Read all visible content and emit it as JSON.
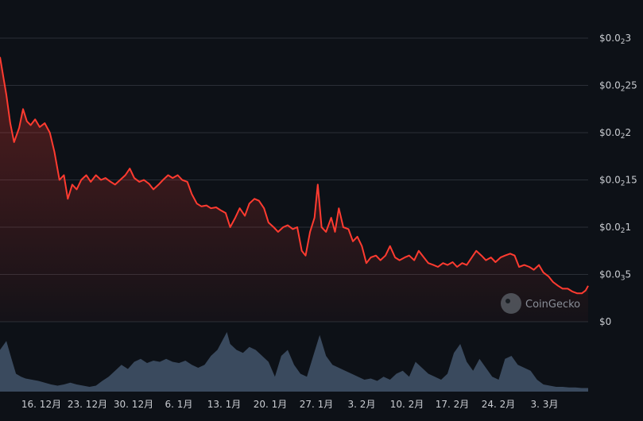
{
  "chart_data": {
    "type": "line",
    "x_labels": [
      "16. 12月",
      "23. 12月",
      "30. 12月",
      "6. 1月",
      "13. 1月",
      "20. 1月",
      "27. 1月",
      "3. 2月",
      "10. 2月",
      "17. 2月",
      "24. 2月",
      "3. 3月"
    ],
    "y_ticks": [
      {
        "main": "$0.0",
        "sub": "2",
        "tail": "3",
        "value": 0.3
      },
      {
        "main": "$0.0",
        "sub": "2",
        "tail": "25",
        "value": 0.25
      },
      {
        "main": "$0.0",
        "sub": "2",
        "tail": "2",
        "value": 0.2
      },
      {
        "main": "$0.0",
        "sub": "2",
        "tail": "15",
        "value": 0.15
      },
      {
        "main": "$0.0",
        "sub": "2",
        "tail": "1",
        "value": 0.1
      },
      {
        "main": "$0.0",
        "sub": "3",
        "tail": "5",
        "value": 0.05
      },
      {
        "main": "$0",
        "sub": "",
        "tail": "",
        "value": 0
      }
    ],
    "ylim": [
      0,
      0.3
    ],
    "price_series": {
      "color": "#ff3b30",
      "points": [
        [
          0,
          0.28
        ],
        [
          1,
          0.24
        ],
        [
          1.6,
          0.21
        ],
        [
          2.2,
          0.19
        ],
        [
          3,
          0.205
        ],
        [
          3.6,
          0.225
        ],
        [
          4.2,
          0.212
        ],
        [
          4.8,
          0.208
        ],
        [
          5.5,
          0.214
        ],
        [
          6.2,
          0.206
        ],
        [
          7,
          0.21
        ],
        [
          7.8,
          0.2
        ],
        [
          8.5,
          0.18
        ],
        [
          9.3,
          0.15
        ],
        [
          10,
          0.155
        ],
        [
          10.6,
          0.13
        ],
        [
          11.3,
          0.145
        ],
        [
          12,
          0.14
        ],
        [
          12.7,
          0.15
        ],
        [
          13.5,
          0.155
        ],
        [
          14.2,
          0.148
        ],
        [
          15,
          0.155
        ],
        [
          15.8,
          0.15
        ],
        [
          16.5,
          0.152
        ],
        [
          17.3,
          0.148
        ],
        [
          18,
          0.145
        ],
        [
          18.8,
          0.15
        ],
        [
          19.6,
          0.155
        ],
        [
          20.3,
          0.162
        ],
        [
          21,
          0.152
        ],
        [
          21.8,
          0.148
        ],
        [
          22.5,
          0.15
        ],
        [
          23.3,
          0.146
        ],
        [
          24,
          0.14
        ],
        [
          24.8,
          0.145
        ],
        [
          25.5,
          0.15
        ],
        [
          26.3,
          0.155
        ],
        [
          27,
          0.152
        ],
        [
          27.8,
          0.155
        ],
        [
          28.5,
          0.15
        ],
        [
          29.3,
          0.148
        ],
        [
          30,
          0.135
        ],
        [
          30.8,
          0.125
        ],
        [
          31.5,
          0.122
        ],
        [
          32.3,
          0.123
        ],
        [
          33,
          0.12
        ],
        [
          33.8,
          0.121
        ],
        [
          34.5,
          0.118
        ],
        [
          35.3,
          0.115
        ],
        [
          36,
          0.1
        ],
        [
          36.8,
          0.11
        ],
        [
          37.5,
          0.12
        ],
        [
          38.3,
          0.112
        ],
        [
          39,
          0.125
        ],
        [
          39.8,
          0.13
        ],
        [
          40.5,
          0.128
        ],
        [
          41.3,
          0.12
        ],
        [
          42,
          0.105
        ],
        [
          42.8,
          0.1
        ],
        [
          43.5,
          0.095
        ],
        [
          44.3,
          0.1
        ],
        [
          45,
          0.102
        ],
        [
          45.8,
          0.098
        ],
        [
          46.5,
          0.1
        ],
        [
          47.2,
          0.075
        ],
        [
          47.8,
          0.07
        ],
        [
          48.5,
          0.095
        ],
        [
          49.2,
          0.11
        ],
        [
          49.7,
          0.145
        ],
        [
          50.3,
          0.1
        ],
        [
          51,
          0.095
        ],
        [
          51.8,
          0.11
        ],
        [
          52.4,
          0.095
        ],
        [
          53,
          0.12
        ],
        [
          53.7,
          0.1
        ],
        [
          54.5,
          0.098
        ],
        [
          55.2,
          0.085
        ],
        [
          55.9,
          0.09
        ],
        [
          56.6,
          0.08
        ],
        [
          57.3,
          0.062
        ],
        [
          58,
          0.068
        ],
        [
          58.8,
          0.07
        ],
        [
          59.5,
          0.065
        ],
        [
          60.3,
          0.07
        ],
        [
          61,
          0.08
        ],
        [
          61.8,
          0.068
        ],
        [
          62.5,
          0.065
        ],
        [
          63.3,
          0.068
        ],
        [
          64,
          0.07
        ],
        [
          64.8,
          0.065
        ],
        [
          65.5,
          0.075
        ],
        [
          66.3,
          0.068
        ],
        [
          67,
          0.062
        ],
        [
          67.8,
          0.06
        ],
        [
          68.5,
          0.058
        ],
        [
          69.3,
          0.062
        ],
        [
          70,
          0.06
        ],
        [
          70.8,
          0.063
        ],
        [
          71.5,
          0.058
        ],
        [
          72.3,
          0.062
        ],
        [
          73,
          0.06
        ],
        [
          73.8,
          0.068
        ],
        [
          74.5,
          0.075
        ],
        [
          75.3,
          0.07
        ],
        [
          76,
          0.065
        ],
        [
          76.8,
          0.068
        ],
        [
          77.5,
          0.063
        ],
        [
          78.3,
          0.068
        ],
        [
          79,
          0.07
        ],
        [
          79.8,
          0.072
        ],
        [
          80.5,
          0.07
        ],
        [
          81.2,
          0.058
        ],
        [
          82,
          0.06
        ],
        [
          82.8,
          0.058
        ],
        [
          83.5,
          0.055
        ],
        [
          84.3,
          0.06
        ],
        [
          85,
          0.052
        ],
        [
          85.8,
          0.048
        ],
        [
          86.5,
          0.042
        ],
        [
          87.3,
          0.038
        ],
        [
          88,
          0.035
        ],
        [
          88.8,
          0.035
        ],
        [
          89.5,
          0.032
        ],
        [
          90.3,
          0.03
        ],
        [
          91,
          0.03
        ],
        [
          91.6,
          0.033
        ],
        [
          92,
          0.038
        ]
      ]
    },
    "volume_series": {
      "color": "#3a4a5e",
      "points": [
        [
          0,
          0.7
        ],
        [
          1,
          0.85
        ],
        [
          1.8,
          0.55
        ],
        [
          2.5,
          0.3
        ],
        [
          3.3,
          0.25
        ],
        [
          4,
          0.22
        ],
        [
          5,
          0.2
        ],
        [
          6,
          0.18
        ],
        [
          7,
          0.15
        ],
        [
          8,
          0.12
        ],
        [
          9,
          0.1
        ],
        [
          10,
          0.12
        ],
        [
          11,
          0.15
        ],
        [
          12,
          0.12
        ],
        [
          13,
          0.1
        ],
        [
          14,
          0.08
        ],
        [
          15,
          0.1
        ],
        [
          16,
          0.18
        ],
        [
          17,
          0.25
        ],
        [
          18,
          0.35
        ],
        [
          19,
          0.45
        ],
        [
          20,
          0.38
        ],
        [
          21,
          0.5
        ],
        [
          22,
          0.55
        ],
        [
          23,
          0.48
        ],
        [
          24,
          0.52
        ],
        [
          25,
          0.5
        ],
        [
          26,
          0.55
        ],
        [
          27,
          0.5
        ],
        [
          28,
          0.48
        ],
        [
          29,
          0.52
        ],
        [
          30,
          0.45
        ],
        [
          31,
          0.4
        ],
        [
          32,
          0.45
        ],
        [
          33,
          0.6
        ],
        [
          34,
          0.7
        ],
        [
          35,
          0.9
        ],
        [
          35.5,
          1.0
        ],
        [
          36,
          0.8
        ],
        [
          37,
          0.7
        ],
        [
          38,
          0.65
        ],
        [
          39,
          0.75
        ],
        [
          40,
          0.7
        ],
        [
          41,
          0.6
        ],
        [
          42,
          0.5
        ],
        [
          43,
          0.25
        ],
        [
          44,
          0.6
        ],
        [
          45,
          0.7
        ],
        [
          46,
          0.45
        ],
        [
          47,
          0.3
        ],
        [
          48,
          0.25
        ],
        [
          49,
          0.6
        ],
        [
          50,
          0.95
        ],
        [
          51,
          0.6
        ],
        [
          52,
          0.45
        ],
        [
          53,
          0.4
        ],
        [
          54,
          0.35
        ],
        [
          55,
          0.3
        ],
        [
          56,
          0.25
        ],
        [
          57,
          0.2
        ],
        [
          58,
          0.22
        ],
        [
          59,
          0.18
        ],
        [
          60,
          0.25
        ],
        [
          61,
          0.2
        ],
        [
          62,
          0.3
        ],
        [
          63,
          0.35
        ],
        [
          64,
          0.25
        ],
        [
          65,
          0.5
        ],
        [
          66,
          0.4
        ],
        [
          67,
          0.3
        ],
        [
          68,
          0.25
        ],
        [
          69,
          0.2
        ],
        [
          70,
          0.3
        ],
        [
          71,
          0.65
        ],
        [
          72,
          0.8
        ],
        [
          73,
          0.5
        ],
        [
          74,
          0.35
        ],
        [
          75,
          0.55
        ],
        [
          76,
          0.4
        ],
        [
          77,
          0.25
        ],
        [
          78,
          0.2
        ],
        [
          79,
          0.55
        ],
        [
          80,
          0.6
        ],
        [
          81,
          0.45
        ],
        [
          82,
          0.4
        ],
        [
          83,
          0.35
        ],
        [
          84,
          0.2
        ],
        [
          85,
          0.12
        ],
        [
          86,
          0.1
        ],
        [
          87,
          0.08
        ],
        [
          88,
          0.08
        ],
        [
          89,
          0.07
        ],
        [
          90,
          0.07
        ],
        [
          91,
          0.06
        ],
        [
          92,
          0.06
        ]
      ]
    },
    "grid": true
  },
  "watermark": {
    "text": "CoinGecko",
    "icon": "coingecko-logo-icon"
  }
}
